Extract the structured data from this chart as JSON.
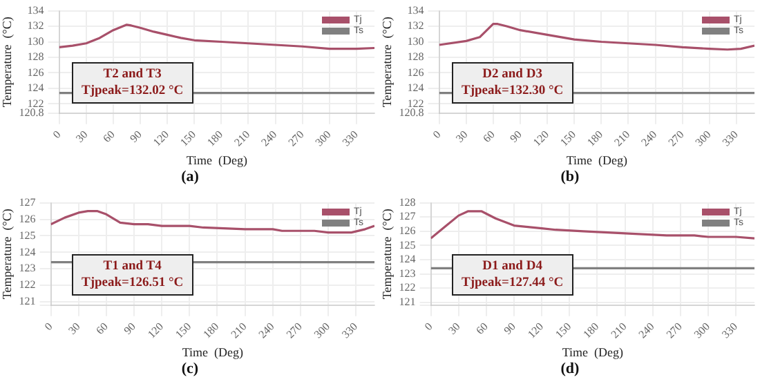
{
  "chart_data": [
    {
      "type": "line",
      "title": "(a)",
      "xlabel": "Time  (Deg)",
      "ylabel": "Temperature  (°C)",
      "xlim": [
        0,
        350
      ],
      "xticks": [
        0,
        30,
        60,
        90,
        120,
        150,
        180,
        210,
        240,
        270,
        300,
        330
      ],
      "ylim": [
        120.8,
        134
      ],
      "yticks": [
        120.8,
        122,
        124,
        126,
        128,
        130,
        132,
        134
      ],
      "grid": true,
      "legend": "top right",
      "marker": "none",
      "annotations": [
        "T2 and T3",
        "Tjpeak=132.02 °C"
      ],
      "series": [
        {
          "name": "Tj",
          "color": "#a8506a",
          "x": [
            0,
            15,
            30,
            45,
            60,
            75,
            80,
            90,
            105,
            120,
            135,
            150,
            180,
            210,
            240,
            270,
            300,
            330,
            350
          ],
          "values": [
            129.3,
            129.5,
            129.8,
            130.5,
            131.5,
            132.2,
            132.1,
            131.8,
            131.3,
            130.9,
            130.5,
            130.2,
            130.0,
            129.8,
            129.6,
            129.4,
            129.1,
            129.1,
            129.2
          ]
        },
        {
          "name": "Ts",
          "color": "#808080",
          "x": [
            0,
            350
          ],
          "values": [
            123.4,
            123.4
          ]
        }
      ]
    },
    {
      "type": "line",
      "title": "(b)",
      "xlabel": "Time  (Deg)",
      "ylabel": "Temperature  (°C)",
      "xlim": [
        0,
        350
      ],
      "xticks": [
        0,
        30,
        60,
        90,
        120,
        150,
        180,
        210,
        240,
        270,
        300,
        330
      ],
      "ylim": [
        120.8,
        134
      ],
      "yticks": [
        120.8,
        122,
        124,
        126,
        128,
        130,
        132,
        134
      ],
      "grid": true,
      "legend": "top right",
      "marker": "none",
      "annotations": [
        "D2 and D3",
        "Tjpeak=132.30 °C"
      ],
      "series": [
        {
          "name": "Tj",
          "color": "#a8506a",
          "x": [
            0,
            30,
            45,
            60,
            65,
            75,
            90,
            120,
            150,
            180,
            210,
            240,
            270,
            300,
            320,
            335,
            350
          ],
          "values": [
            129.6,
            130.1,
            130.6,
            132.3,
            132.3,
            132.0,
            131.5,
            130.9,
            130.3,
            130.0,
            129.8,
            129.6,
            129.3,
            129.1,
            129.0,
            129.1,
            129.5
          ]
        },
        {
          "name": "Ts",
          "color": "#808080",
          "x": [
            0,
            350
          ],
          "values": [
            123.4,
            123.4
          ]
        }
      ]
    },
    {
      "type": "line",
      "title": "(c)",
      "xlabel": "Time  (Deg)",
      "ylabel": "Temperature  (°C)",
      "xlim": [
        0,
        350
      ],
      "xticks": [
        0,
        30,
        60,
        90,
        120,
        150,
        180,
        210,
        240,
        270,
        300,
        330
      ],
      "ylim": [
        120.8,
        127
      ],
      "yticks": [
        {
          "value": 120.8,
          "label": null
        },
        121,
        122,
        123,
        124,
        125,
        126,
        127
      ],
      "grid": true,
      "legend": "top right",
      "marker": "none",
      "annotations": [
        "T1 and T4",
        "Tjpeak=126.51 °C"
      ],
      "series": [
        {
          "name": "Tj",
          "color": "#a8506a",
          "x": [
            0,
            15,
            30,
            40,
            50,
            60,
            75,
            90,
            105,
            120,
            150,
            165,
            210,
            240,
            250,
            285,
            300,
            325,
            340,
            350
          ],
          "values": [
            125.7,
            126.1,
            126.4,
            126.5,
            126.5,
            126.3,
            125.8,
            125.7,
            125.7,
            125.6,
            125.6,
            125.5,
            125.4,
            125.4,
            125.3,
            125.3,
            125.2,
            125.2,
            125.4,
            125.6
          ]
        },
        {
          "name": "Ts",
          "color": "#808080",
          "x": [
            0,
            350
          ],
          "values": [
            123.4,
            123.4
          ]
        }
      ]
    },
    {
      "type": "line",
      "title": "(d)",
      "xlabel": "Time  (Deg)",
      "ylabel": "Temperature  (°C)",
      "xlim": [
        0,
        350
      ],
      "xticks": [
        0,
        30,
        60,
        90,
        120,
        150,
        180,
        210,
        240,
        270,
        300,
        330
      ],
      "ylim": [
        120.8,
        128
      ],
      "yticks": [
        {
          "value": 120.8,
          "label": null
        },
        121,
        122,
        123,
        124,
        125,
        126,
        127,
        128
      ],
      "grid": true,
      "legend": "top right",
      "marker": "none",
      "annotations": [
        "D1 and D4",
        "Tjpeak=127.44 °C"
      ],
      "series": [
        {
          "name": "Tj",
          "color": "#a8506a",
          "x": [
            0,
            15,
            30,
            40,
            55,
            70,
            90,
            105,
            120,
            135,
            165,
            195,
            225,
            255,
            285,
            300,
            330,
            350
          ],
          "values": [
            125.5,
            126.3,
            127.1,
            127.4,
            127.4,
            126.9,
            126.4,
            126.3,
            126.2,
            126.1,
            126.0,
            125.9,
            125.8,
            125.7,
            125.7,
            125.6,
            125.6,
            125.5
          ]
        },
        {
          "name": "Ts",
          "color": "#808080",
          "x": [
            0,
            350
          ],
          "values": [
            123.4,
            123.4
          ]
        }
      ]
    }
  ]
}
